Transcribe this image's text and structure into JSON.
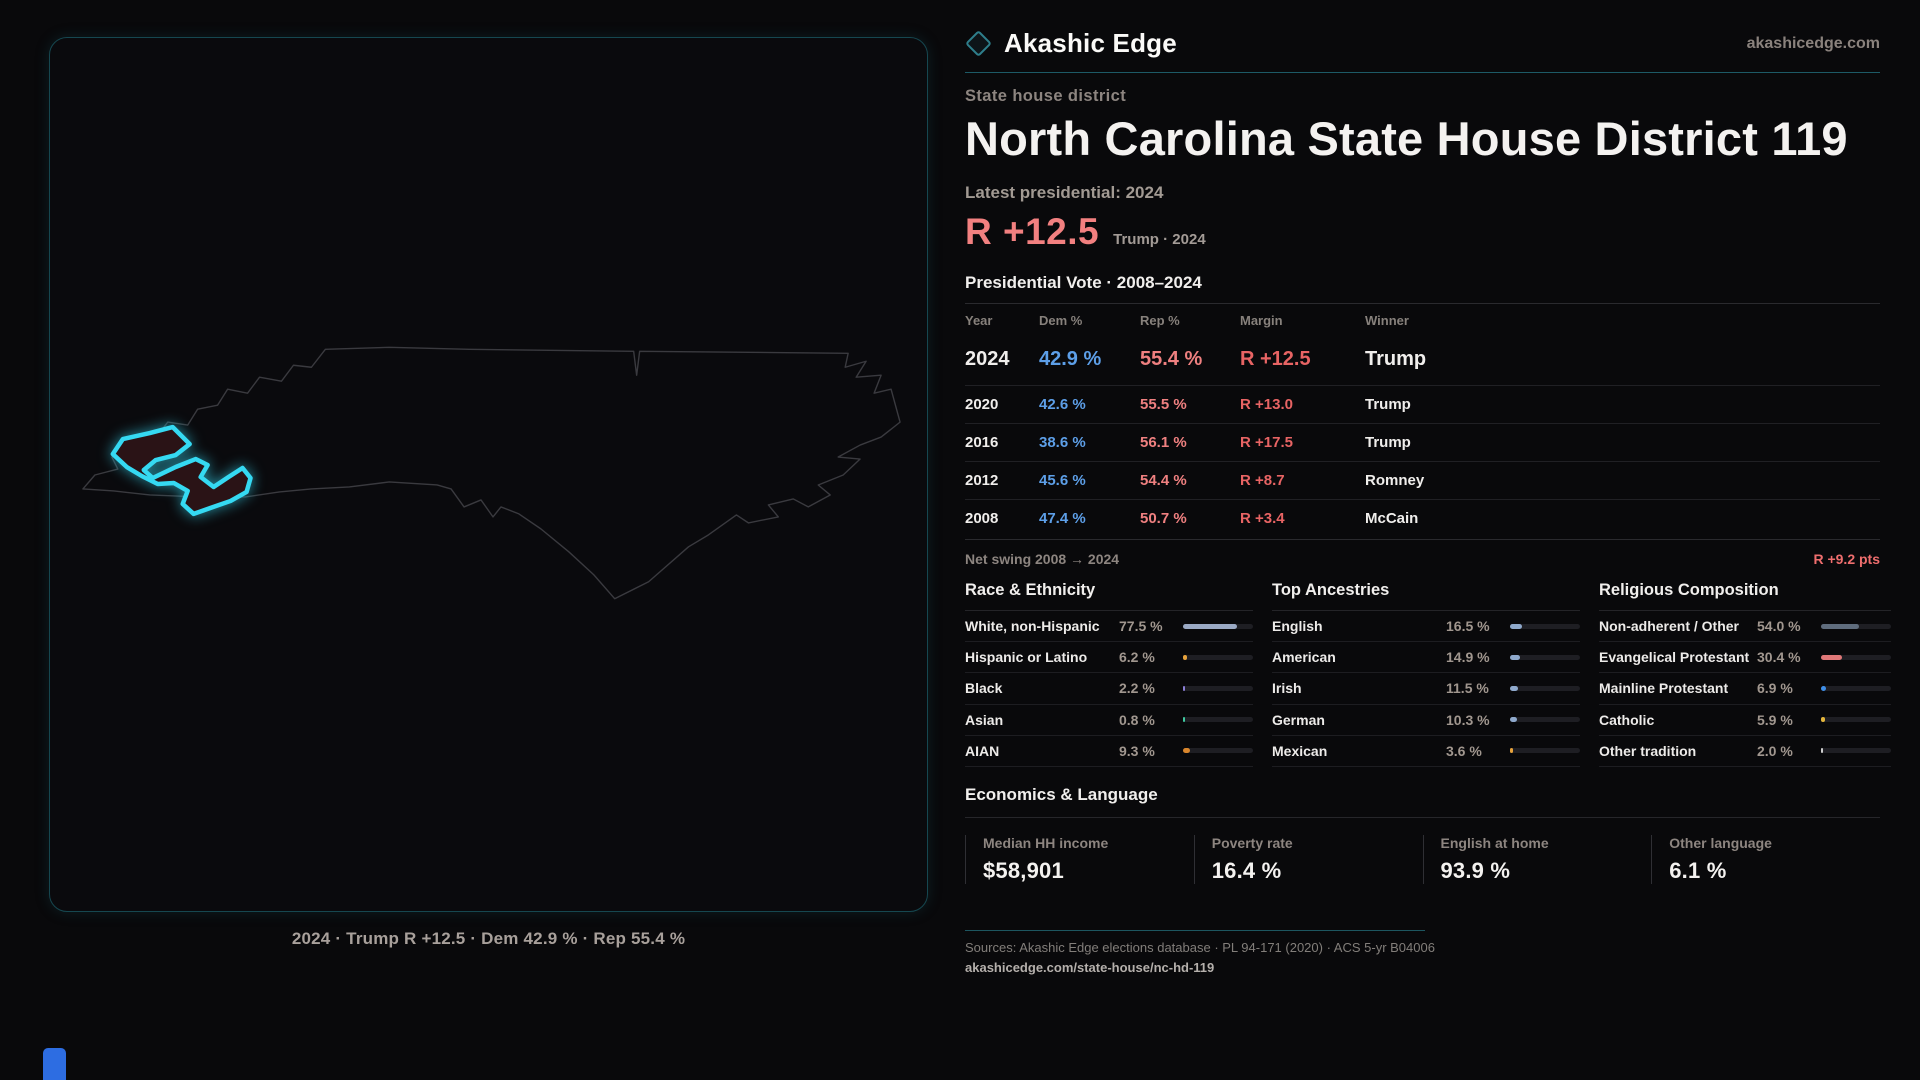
{
  "brand": {
    "name": "Akashic Edge",
    "domain": "akashicedge.com"
  },
  "page": {
    "kicker": "State house district",
    "title": "North Carolina State House District 119",
    "latest_label": "Latest presidential: 2024",
    "headline_margin": "R +12.5",
    "headline_sub": "Trump · 2024"
  },
  "map": {
    "caption": "2024 · Trump R +12.5 · Dem 42.9 % · Rep 55.4 %"
  },
  "vote_table": {
    "title": "Presidential Vote · 2008–2024",
    "columns": [
      "Year",
      "Dem %",
      "Rep %",
      "Margin",
      "Winner"
    ],
    "rows": [
      {
        "year": "2024",
        "dem": "42.9 %",
        "rep": "55.4 %",
        "margin": "R +12.5",
        "winner": "Trump",
        "featured": true
      },
      {
        "year": "2020",
        "dem": "42.6 %",
        "rep": "55.5 %",
        "margin": "R +13.0",
        "winner": "Trump",
        "featured": false
      },
      {
        "year": "2016",
        "dem": "38.6 %",
        "rep": "56.1 %",
        "margin": "R +17.5",
        "winner": "Trump",
        "featured": false
      },
      {
        "year": "2012",
        "dem": "45.6 %",
        "rep": "54.4 %",
        "margin": "R +8.7",
        "winner": "Romney",
        "featured": false
      },
      {
        "year": "2008",
        "dem": "47.4 %",
        "rep": "50.7 %",
        "margin": "R +3.4",
        "winner": "McCain",
        "featured": false
      }
    ],
    "net_swing_label": "Net swing 2008 → 2024",
    "net_swing_value": "R +9.2 pts"
  },
  "demographics": [
    {
      "title": "Race & Ethnicity",
      "rows": [
        {
          "label": "White, non-Hispanic",
          "value": "77.5 %",
          "pct": 77.5,
          "color": "#9aa9c4"
        },
        {
          "label": "Hispanic or Latino",
          "value": "6.2 %",
          "pct": 6.2,
          "color": "#e6a23c"
        },
        {
          "label": "Black",
          "value": "2.2 %",
          "pct": 2.2,
          "color": "#8b7fd6"
        },
        {
          "label": "Asian",
          "value": "0.8 %",
          "pct": 0.8,
          "color": "#3fc9a0"
        },
        {
          "label": "AIAN",
          "value": "9.3 %",
          "pct": 9.3,
          "color": "#d9862c"
        }
      ]
    },
    {
      "title": "Top Ancestries",
      "rows": [
        {
          "label": "English",
          "value": "16.5 %",
          "pct": 16.5,
          "color": "#8fa9cc"
        },
        {
          "label": "American",
          "value": "14.9 %",
          "pct": 14.9,
          "color": "#8fa9cc"
        },
        {
          "label": "Irish",
          "value": "11.5 %",
          "pct": 11.5,
          "color": "#8fa9cc"
        },
        {
          "label": "German",
          "value": "10.3 %",
          "pct": 10.3,
          "color": "#8fa9cc"
        },
        {
          "label": "Mexican",
          "value": "3.6 %",
          "pct": 3.6,
          "color": "#e6a23c"
        }
      ]
    },
    {
      "title": "Religious Composition",
      "rows": [
        {
          "label": "Non-adherent / Other",
          "value": "54.0 %",
          "pct": 54.0,
          "color": "#5f6c7d"
        },
        {
          "label": "Evangelical Protestant",
          "value": "30.4 %",
          "pct": 30.4,
          "color": "#e07878"
        },
        {
          "label": "Mainline Protestant",
          "value": "6.9 %",
          "pct": 6.9,
          "color": "#3f8fe8"
        },
        {
          "label": "Catholic",
          "value": "5.9 %",
          "pct": 5.9,
          "color": "#e3b53c"
        },
        {
          "label": "Other tradition",
          "value": "2.0 %",
          "pct": 2.0,
          "color": "#cfcfcf"
        }
      ]
    }
  ],
  "economics": {
    "title": "Economics & Language",
    "stats": [
      {
        "label": "Median HH income",
        "value": "$58,901"
      },
      {
        "label": "Poverty rate",
        "value": "16.4 %"
      },
      {
        "label": "English at home",
        "value": "93.9 %"
      },
      {
        "label": "Other language",
        "value": "6.1 %"
      }
    ]
  },
  "footer": {
    "sources": "Sources: Akashic Edge elections database · PL 94-171 (2020) · ACS 5-yr B04006",
    "permalink": "akashicedge.com/state-house/nc-hd-119"
  }
}
